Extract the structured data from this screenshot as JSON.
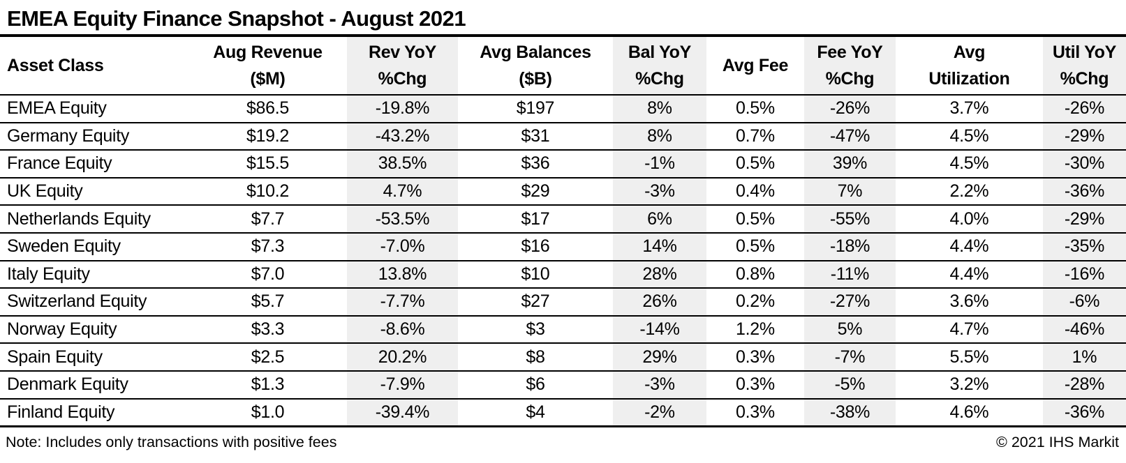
{
  "title": "EMEA Equity Finance Snapshot - August 2021",
  "chart_data": {
    "type": "table",
    "title": "EMEA Equity Finance Snapshot - August 2021",
    "columns": [
      {
        "id": "asset_class",
        "label": "Asset Class",
        "label_line2": "",
        "align": "left",
        "shaded": false,
        "width_pct": 16.74
      },
      {
        "id": "aug_revenue_m",
        "label": "Aug Revenue",
        "label_line2": "($M)",
        "align": "center",
        "shaded": false,
        "width_pct": 14.07
      },
      {
        "id": "rev_yoy_chg",
        "label": "Rev YoY",
        "label_line2": "%Chg",
        "align": "center",
        "shaded": true,
        "width_pct": 9.86
      },
      {
        "id": "avg_balances_b",
        "label": "Avg Balances",
        "label_line2": "($B)",
        "align": "center",
        "shaded": false,
        "width_pct": 13.76
      },
      {
        "id": "bal_yoy_chg",
        "label": "Bal YoY",
        "label_line2": "%Chg",
        "align": "center",
        "shaded": true,
        "width_pct": 8.31
      },
      {
        "id": "avg_fee",
        "label": "Avg Fee",
        "label_line2": "",
        "align": "center",
        "shaded": false,
        "width_pct": 8.68
      },
      {
        "id": "fee_yoy_chg",
        "label": "Fee YoY",
        "label_line2": "%Chg",
        "align": "center",
        "shaded": true,
        "width_pct": 8.12
      },
      {
        "id": "avg_utilization",
        "label": "Avg",
        "label_line2": "Utilization",
        "align": "center",
        "shaded": false,
        "width_pct": 13.08
      },
      {
        "id": "util_yoy_chg",
        "label": "Util YoY",
        "label_line2": "%Chg",
        "align": "center",
        "shaded": true,
        "width_pct": 7.38
      }
    ],
    "rows": [
      [
        "EMEA Equity",
        "$86.5",
        "-19.8%",
        "$197",
        "8%",
        "0.5%",
        "-26%",
        "3.7%",
        "-26%"
      ],
      [
        "Germany Equity",
        "$19.2",
        "-43.2%",
        "$31",
        "8%",
        "0.7%",
        "-47%",
        "4.5%",
        "-29%"
      ],
      [
        "France Equity",
        "$15.5",
        "38.5%",
        "$36",
        "-1%",
        "0.5%",
        "39%",
        "4.5%",
        "-30%"
      ],
      [
        "UK Equity",
        "$10.2",
        "4.7%",
        "$29",
        "-3%",
        "0.4%",
        "7%",
        "2.2%",
        "-36%"
      ],
      [
        "Netherlands Equity",
        "$7.7",
        "-53.5%",
        "$17",
        "6%",
        "0.5%",
        "-55%",
        "4.0%",
        "-29%"
      ],
      [
        "Sweden Equity",
        "$7.3",
        "-7.0%",
        "$16",
        "14%",
        "0.5%",
        "-18%",
        "4.4%",
        "-35%"
      ],
      [
        "Italy Equity",
        "$7.0",
        "13.8%",
        "$10",
        "28%",
        "0.8%",
        "-11%",
        "4.4%",
        "-16%"
      ],
      [
        "Switzerland Equity",
        "$5.7",
        "-7.7%",
        "$27",
        "26%",
        "0.2%",
        "-27%",
        "3.6%",
        "-6%"
      ],
      [
        "Norway Equity",
        "$3.3",
        "-8.6%",
        "$3",
        "-14%",
        "1.2%",
        "5%",
        "4.7%",
        "-46%"
      ],
      [
        "Spain Equity",
        "$2.5",
        "20.2%",
        "$8",
        "29%",
        "0.3%",
        "-7%",
        "5.5%",
        "1%"
      ],
      [
        "Denmark Equity",
        "$1.3",
        "-7.9%",
        "$6",
        "-3%",
        "0.3%",
        "-5%",
        "3.2%",
        "-28%"
      ],
      [
        "Finland Equity",
        "$1.0",
        "-39.4%",
        "$4",
        "-2%",
        "0.3%",
        "-38%",
        "4.6%",
        "-36%"
      ]
    ]
  },
  "footer": {
    "note": "Note: Includes only transactions with positive fees",
    "copyright": "© 2021 IHS Markit"
  },
  "colors": {
    "shaded_column": "#efefef",
    "border": "#000000",
    "text": "#000000",
    "background": "#ffffff"
  }
}
